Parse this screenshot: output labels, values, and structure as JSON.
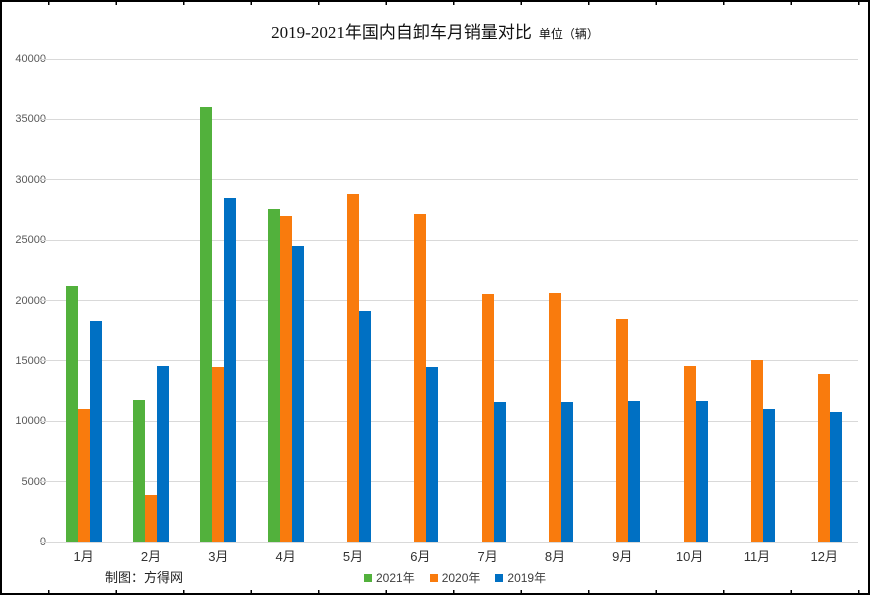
{
  "title": {
    "main": "2019-2021年国内自卸车月销量对比",
    "unit": "单位（辆）"
  },
  "footer": {
    "credit": "制图：方得网"
  },
  "chart_data": {
    "type": "bar",
    "title": "2019-2021年国内自卸车月销量对比",
    "unit_label": "单位（辆）",
    "categories": [
      "1月",
      "2月",
      "3月",
      "4月",
      "5月",
      "6月",
      "7月",
      "8月",
      "9月",
      "10月",
      "11月",
      "12月"
    ],
    "series": [
      {
        "name": "2021年",
        "color": "#52B13C",
        "values": [
          21200,
          11800,
          36000,
          27600,
          null,
          null,
          null,
          null,
          null,
          null,
          null,
          null
        ]
      },
      {
        "name": "2020年",
        "color": "#F97B0D",
        "values": [
          11000,
          3900,
          14500,
          27000,
          28800,
          27200,
          20500,
          20600,
          18500,
          14600,
          15100,
          13900
        ]
      },
      {
        "name": "2019年",
        "color": "#0070C3",
        "values": [
          18300,
          14600,
          28500,
          24500,
          19100,
          14500,
          11600,
          11600,
          11700,
          11700,
          11000,
          10800
        ]
      }
    ],
    "ylim": [
      0,
      40000
    ],
    "yticks": [
      0,
      5000,
      10000,
      15000,
      20000,
      25000,
      30000,
      35000,
      40000
    ],
    "grid": "horizontal-only",
    "legend_position": "bottom-center",
    "gridline_color": "#d9d9d9",
    "axis_label_color": "#595959"
  }
}
